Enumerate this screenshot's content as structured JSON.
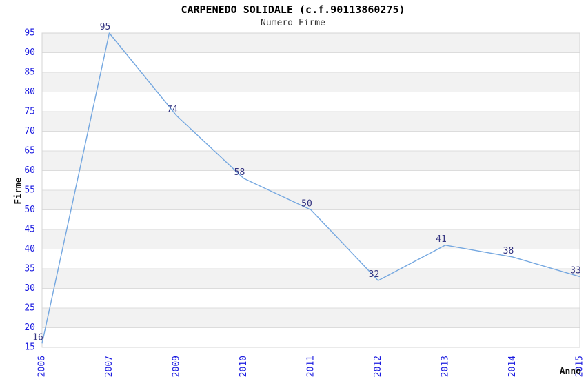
{
  "chart_data": {
    "type": "line",
    "title": "CARPENEDO SOLIDALE (c.f.90113860275)",
    "subtitle": "Numero Firme",
    "xlabel": "Anno",
    "ylabel": "Firme",
    "categories": [
      "2006",
      "2007",
      "2009",
      "2010",
      "2011",
      "2012",
      "2013",
      "2014",
      "2015"
    ],
    "series": [
      {
        "name": "Numero Firme",
        "values": [
          16,
          95,
          74,
          58,
          50,
          32,
          41,
          38,
          33
        ]
      }
    ],
    "point_labels_shown": true,
    "ylim": [
      15,
      95
    ],
    "ytick_step": 5,
    "yticks": [
      15,
      20,
      25,
      30,
      35,
      40,
      45,
      50,
      55,
      60,
      65,
      70,
      75,
      80,
      85,
      90,
      95
    ],
    "grid": "horizontal-gridlines-with-alternating-bands",
    "legend": "none",
    "x_tick_rotation_degrees": -90,
    "colors": {
      "line": "#74a7e0",
      "tick_label": "#1b1be0",
      "point_label": "#333380",
      "band_fill": "#f2f2f2",
      "band_fill_alt": "#ffffff",
      "gridline": "#dcdcdc",
      "plot_border": "#d4d4d4",
      "title": "#000000",
      "subtitle": "#333333",
      "axis_name": "#111111",
      "background": "#ffffff"
    }
  }
}
